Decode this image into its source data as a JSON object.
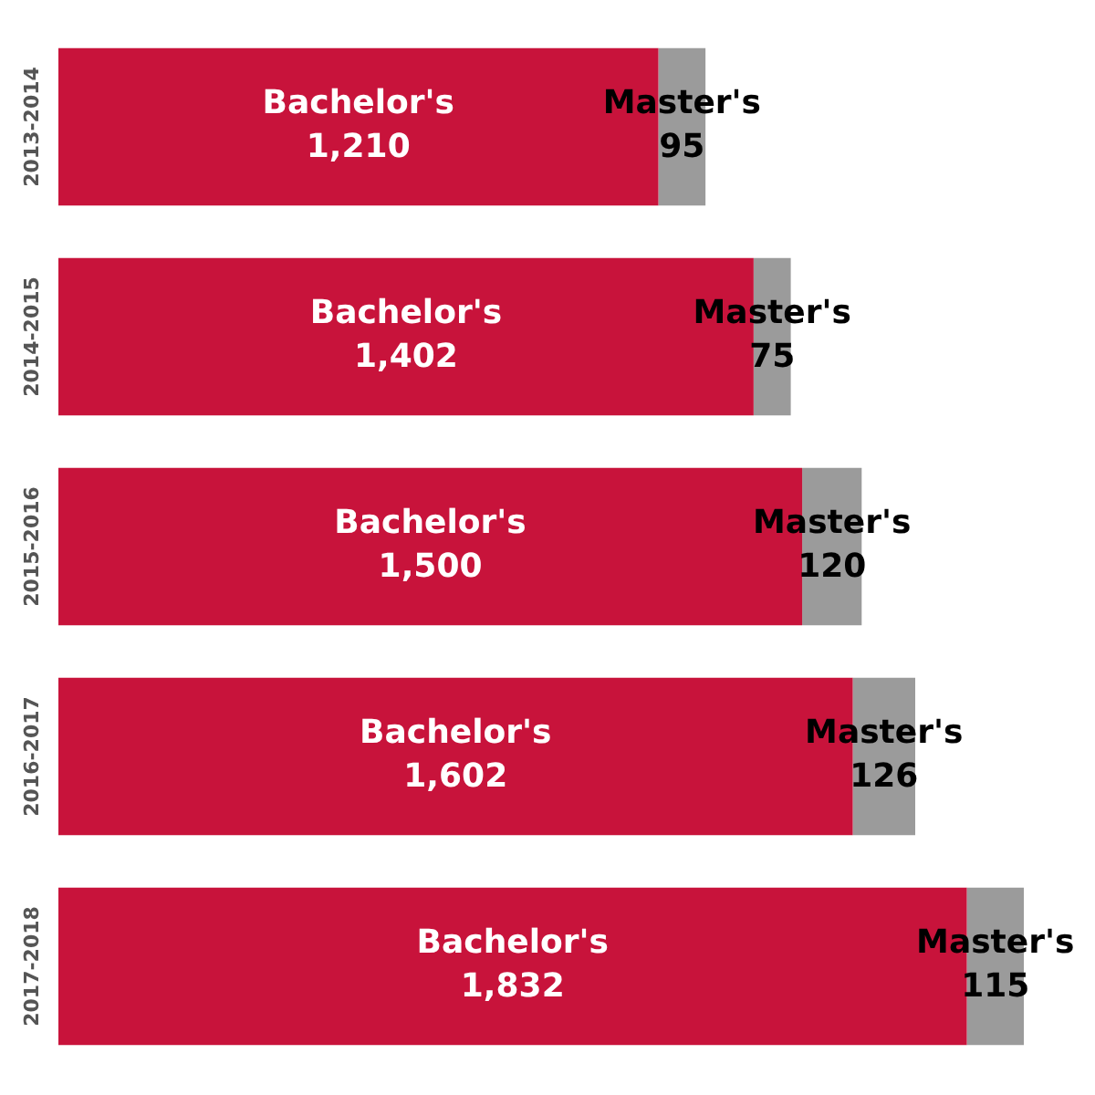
{
  "chart_data": {
    "type": "bar",
    "orientation": "horizontal",
    "stacked": true,
    "legend": false,
    "categories": [
      "2013-2014",
      "2014-2015",
      "2015-2016",
      "2016-2017",
      "2017-2018"
    ],
    "series": [
      {
        "name": "Bachelor's",
        "color": "#c8133b",
        "values": [
          1210,
          1402,
          1500,
          1602,
          1832
        ],
        "value_labels": [
          "1,210",
          "1,402",
          "1,500",
          "1,602",
          "1,832"
        ]
      },
      {
        "name": "Master's",
        "color": "#9b9b9b",
        "values": [
          95,
          75,
          120,
          126,
          115
        ],
        "value_labels": [
          "95",
          "75",
          "120",
          "126",
          "115"
        ]
      }
    ]
  }
}
